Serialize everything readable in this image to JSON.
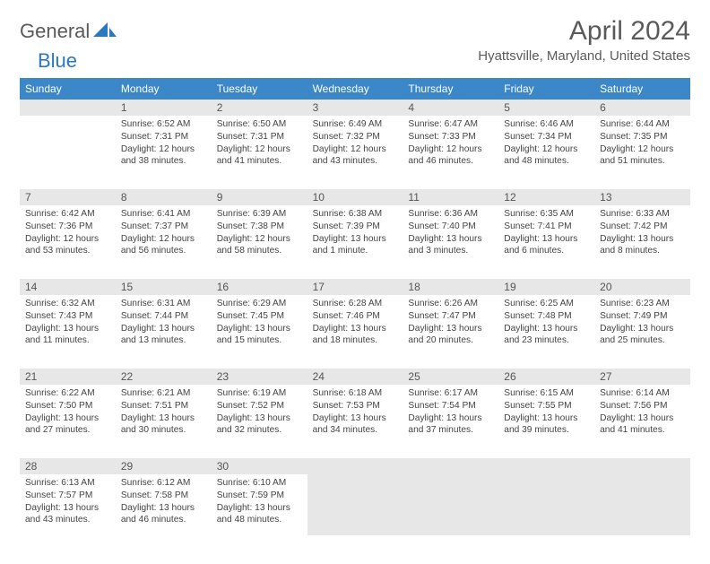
{
  "logo": {
    "general": "General",
    "blue": "Blue"
  },
  "title": "April 2024",
  "location": "Hyattsville, Maryland, United States",
  "colors": {
    "header_bg": "#3b87c8",
    "header_fg": "#ffffff",
    "daynum_bg": "#e7e7e7",
    "border": "#3b87c8",
    "text": "#444444",
    "title_text": "#5a5a5a"
  },
  "day_names": [
    "Sunday",
    "Monday",
    "Tuesday",
    "Wednesday",
    "Thursday",
    "Friday",
    "Saturday"
  ],
  "weeks": [
    [
      {
        "n": "",
        "sunrise": "",
        "sunset": "",
        "daylight": ""
      },
      {
        "n": "1",
        "sunrise": "Sunrise: 6:52 AM",
        "sunset": "Sunset: 7:31 PM",
        "daylight": "Daylight: 12 hours and 38 minutes."
      },
      {
        "n": "2",
        "sunrise": "Sunrise: 6:50 AM",
        "sunset": "Sunset: 7:31 PM",
        "daylight": "Daylight: 12 hours and 41 minutes."
      },
      {
        "n": "3",
        "sunrise": "Sunrise: 6:49 AM",
        "sunset": "Sunset: 7:32 PM",
        "daylight": "Daylight: 12 hours and 43 minutes."
      },
      {
        "n": "4",
        "sunrise": "Sunrise: 6:47 AM",
        "sunset": "Sunset: 7:33 PM",
        "daylight": "Daylight: 12 hours and 46 minutes."
      },
      {
        "n": "5",
        "sunrise": "Sunrise: 6:46 AM",
        "sunset": "Sunset: 7:34 PM",
        "daylight": "Daylight: 12 hours and 48 minutes."
      },
      {
        "n": "6",
        "sunrise": "Sunrise: 6:44 AM",
        "sunset": "Sunset: 7:35 PM",
        "daylight": "Daylight: 12 hours and 51 minutes."
      }
    ],
    [
      {
        "n": "7",
        "sunrise": "Sunrise: 6:42 AM",
        "sunset": "Sunset: 7:36 PM",
        "daylight": "Daylight: 12 hours and 53 minutes."
      },
      {
        "n": "8",
        "sunrise": "Sunrise: 6:41 AM",
        "sunset": "Sunset: 7:37 PM",
        "daylight": "Daylight: 12 hours and 56 minutes."
      },
      {
        "n": "9",
        "sunrise": "Sunrise: 6:39 AM",
        "sunset": "Sunset: 7:38 PM",
        "daylight": "Daylight: 12 hours and 58 minutes."
      },
      {
        "n": "10",
        "sunrise": "Sunrise: 6:38 AM",
        "sunset": "Sunset: 7:39 PM",
        "daylight": "Daylight: 13 hours and 1 minute."
      },
      {
        "n": "11",
        "sunrise": "Sunrise: 6:36 AM",
        "sunset": "Sunset: 7:40 PM",
        "daylight": "Daylight: 13 hours and 3 minutes."
      },
      {
        "n": "12",
        "sunrise": "Sunrise: 6:35 AM",
        "sunset": "Sunset: 7:41 PM",
        "daylight": "Daylight: 13 hours and 6 minutes."
      },
      {
        "n": "13",
        "sunrise": "Sunrise: 6:33 AM",
        "sunset": "Sunset: 7:42 PM",
        "daylight": "Daylight: 13 hours and 8 minutes."
      }
    ],
    [
      {
        "n": "14",
        "sunrise": "Sunrise: 6:32 AM",
        "sunset": "Sunset: 7:43 PM",
        "daylight": "Daylight: 13 hours and 11 minutes."
      },
      {
        "n": "15",
        "sunrise": "Sunrise: 6:31 AM",
        "sunset": "Sunset: 7:44 PM",
        "daylight": "Daylight: 13 hours and 13 minutes."
      },
      {
        "n": "16",
        "sunrise": "Sunrise: 6:29 AM",
        "sunset": "Sunset: 7:45 PM",
        "daylight": "Daylight: 13 hours and 15 minutes."
      },
      {
        "n": "17",
        "sunrise": "Sunrise: 6:28 AM",
        "sunset": "Sunset: 7:46 PM",
        "daylight": "Daylight: 13 hours and 18 minutes."
      },
      {
        "n": "18",
        "sunrise": "Sunrise: 6:26 AM",
        "sunset": "Sunset: 7:47 PM",
        "daylight": "Daylight: 13 hours and 20 minutes."
      },
      {
        "n": "19",
        "sunrise": "Sunrise: 6:25 AM",
        "sunset": "Sunset: 7:48 PM",
        "daylight": "Daylight: 13 hours and 23 minutes."
      },
      {
        "n": "20",
        "sunrise": "Sunrise: 6:23 AM",
        "sunset": "Sunset: 7:49 PM",
        "daylight": "Daylight: 13 hours and 25 minutes."
      }
    ],
    [
      {
        "n": "21",
        "sunrise": "Sunrise: 6:22 AM",
        "sunset": "Sunset: 7:50 PM",
        "daylight": "Daylight: 13 hours and 27 minutes."
      },
      {
        "n": "22",
        "sunrise": "Sunrise: 6:21 AM",
        "sunset": "Sunset: 7:51 PM",
        "daylight": "Daylight: 13 hours and 30 minutes."
      },
      {
        "n": "23",
        "sunrise": "Sunrise: 6:19 AM",
        "sunset": "Sunset: 7:52 PM",
        "daylight": "Daylight: 13 hours and 32 minutes."
      },
      {
        "n": "24",
        "sunrise": "Sunrise: 6:18 AM",
        "sunset": "Sunset: 7:53 PM",
        "daylight": "Daylight: 13 hours and 34 minutes."
      },
      {
        "n": "25",
        "sunrise": "Sunrise: 6:17 AM",
        "sunset": "Sunset: 7:54 PM",
        "daylight": "Daylight: 13 hours and 37 minutes."
      },
      {
        "n": "26",
        "sunrise": "Sunrise: 6:15 AM",
        "sunset": "Sunset: 7:55 PM",
        "daylight": "Daylight: 13 hours and 39 minutes."
      },
      {
        "n": "27",
        "sunrise": "Sunrise: 6:14 AM",
        "sunset": "Sunset: 7:56 PM",
        "daylight": "Daylight: 13 hours and 41 minutes."
      }
    ],
    [
      {
        "n": "28",
        "sunrise": "Sunrise: 6:13 AM",
        "sunset": "Sunset: 7:57 PM",
        "daylight": "Daylight: 13 hours and 43 minutes."
      },
      {
        "n": "29",
        "sunrise": "Sunrise: 6:12 AM",
        "sunset": "Sunset: 7:58 PM",
        "daylight": "Daylight: 13 hours and 46 minutes."
      },
      {
        "n": "30",
        "sunrise": "Sunrise: 6:10 AM",
        "sunset": "Sunset: 7:59 PM",
        "daylight": "Daylight: 13 hours and 48 minutes."
      },
      {
        "n": "",
        "sunrise": "",
        "sunset": "",
        "daylight": "",
        "filler": true
      },
      {
        "n": "",
        "sunrise": "",
        "sunset": "",
        "daylight": "",
        "filler": true
      },
      {
        "n": "",
        "sunrise": "",
        "sunset": "",
        "daylight": "",
        "filler": true
      },
      {
        "n": "",
        "sunrise": "",
        "sunset": "",
        "daylight": "",
        "filler": true
      }
    ]
  ]
}
